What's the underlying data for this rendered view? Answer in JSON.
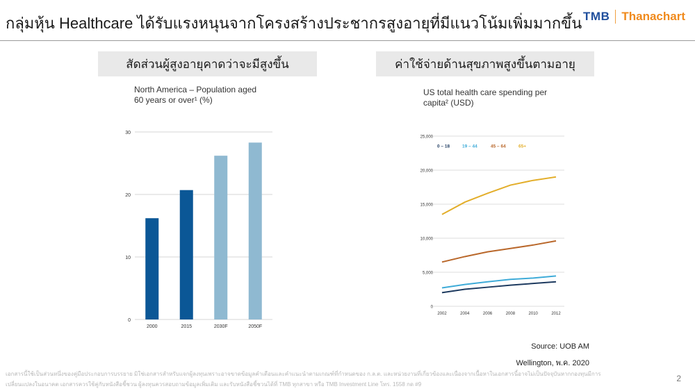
{
  "header": {
    "title": "กลุ่มหุ้น Healthcare ได้รับแรงหนุนจากโครงสร้างประชากรสูงอายุที่มีแนวโน้มเพิ่มมากขึ้น",
    "logo_left": "TMB",
    "logo_right": "Thanachart",
    "brand_colors": {
      "tmb": "#1f4e9c",
      "thanachart": "#f08a1c"
    }
  },
  "left_section": {
    "header": "สัดส่วนผู้สูงอายุคาดว่าจะมีสูงขึ้น",
    "subtitle_line1": "North America – Population aged",
    "subtitle_line2": "60 years or over¹ (%)"
  },
  "right_section": {
    "header": "ค่าใช้จ่ายด้านสุขภาพสูงขึ้นตามอายุ",
    "subtitle_line1": "US total health care spending per",
    "subtitle_line2": "capita² (USD)"
  },
  "chart_data": [
    {
      "type": "bar",
      "categories": [
        "2000",
        "2015",
        "2030F",
        "2050F"
      ],
      "values": [
        16.2,
        20.7,
        26.2,
        28.3
      ],
      "colors": [
        "#0b5796",
        "#0b5796",
        "#8fb9d1",
        "#8fb9d1"
      ],
      "ylim": [
        0,
        30
      ],
      "yticks": [
        0,
        10,
        20,
        30
      ],
      "grid": true
    },
    {
      "type": "line",
      "x": [
        "2002",
        "2004",
        "2006",
        "2008",
        "2010",
        "2012"
      ],
      "ylim": [
        0,
        25000
      ],
      "yticks": [
        "0",
        "5,000",
        "10,000",
        "15,000",
        "20,000",
        "25,000"
      ],
      "grid": true,
      "legend_position": "top-left",
      "series": [
        {
          "name": "0 – 18",
          "color": "#1d3a5f",
          "values": [
            2000,
            2500,
            2800,
            3100,
            3350,
            3600
          ]
        },
        {
          "name": "19 – 44",
          "color": "#3eabd8",
          "values": [
            2700,
            3200,
            3600,
            3950,
            4150,
            4450
          ]
        },
        {
          "name": "45 – 64",
          "color": "#b9672a",
          "values": [
            6500,
            7300,
            8000,
            8500,
            9000,
            9600
          ]
        },
        {
          "name": "65+",
          "color": "#e3ae2a",
          "values": [
            13500,
            15300,
            16600,
            17800,
            18500,
            19000
          ]
        }
      ]
    }
  ],
  "source": {
    "line1": "Source: UOB AM",
    "line2": "Wellington, พ.ค. 2020"
  },
  "disclaimer": {
    "line1": "เอกสารนี้ใช้เป็นส่วนหนึ่งของคู่มือประกอบการบรรยาย มิใช่เอกสารสำหรับแจกผู้ลงทุนเพราะอาจขาดข้อมูลคำเตือนและคำแนะนำตามเกณฑ์ที่กำหนดของ ก.ล.ต. และหน่วยงานที่เกี่ยวข้องและเนื่องจากเนื้อหาในเอกสารนี้อาจไม่เป็นปัจจุบันหากกองทุนมีการ",
    "line2": "เปลี่ยนแปลงในอนาคต เอกสารควรใช้คู่กับหนังสือชี้ชวน ผู้ลงทุนควรสอบถามข้อมูลเพิ่มเติม และรับหนังสือชี้ชวนได้ที่ TMB ทุกสาขา หรือ TMB Investment Line โทร. 1558 กด #9"
  },
  "page_number": "2"
}
